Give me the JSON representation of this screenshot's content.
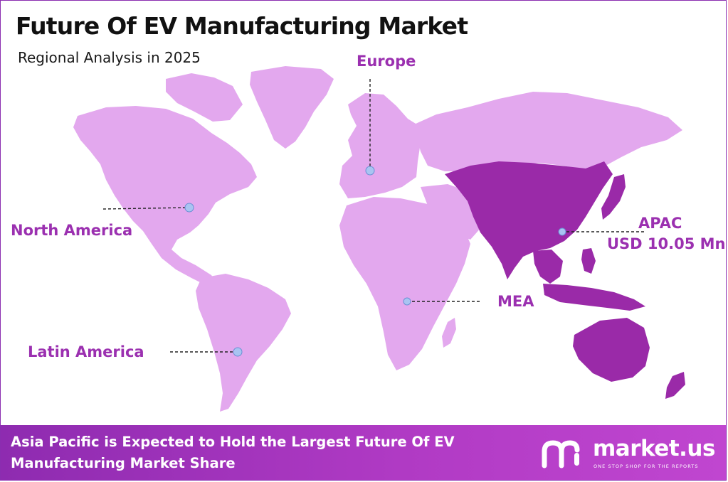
{
  "title": "Future Of EV Manufacturing Market",
  "subtitle": "Regional Analysis in 2025",
  "regions": {
    "europe": "Europe",
    "north_america": "North America",
    "latin_america": "Latin America",
    "mea": "MEA",
    "apac": "APAC",
    "apac_value": "USD 10.05 Mn"
  },
  "highlighted_region": "APAC",
  "colors": {
    "land": "#e3a8ee",
    "highlight": "#9a2aa8",
    "label": "#9b30b0",
    "marker": "#a9c4f2",
    "footer": "#a035b8"
  },
  "footer": {
    "line1": "Asia Pacific is Expected to Hold the Largest Future Of EV",
    "line2": "Manufacturing Market Share"
  },
  "brand": {
    "name": "market.us",
    "tagline": "ONE STOP SHOP FOR THE REPORTS"
  }
}
